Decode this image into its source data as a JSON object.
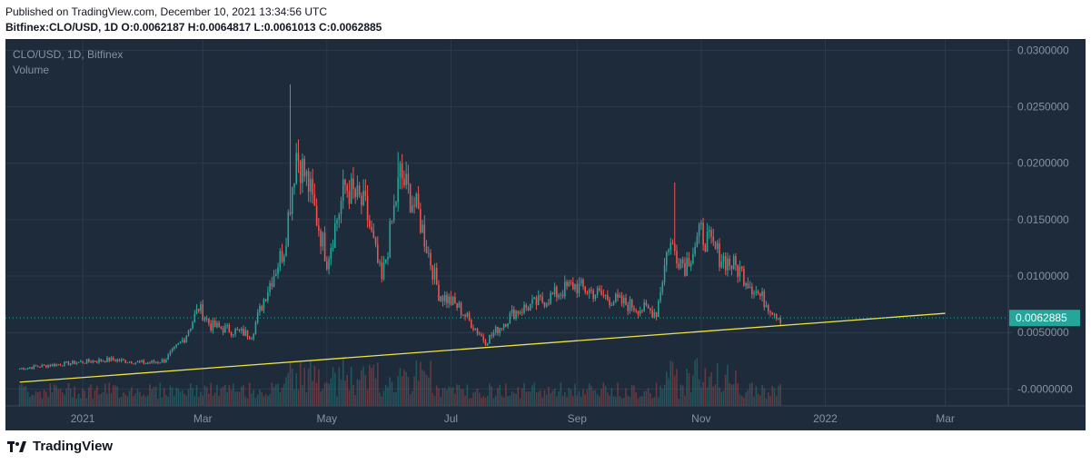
{
  "header": {
    "published": "Published on TradingView.com, December 10, 2021 13:34:56 UTC",
    "symbol": "Bitfinex:CLO/USD, 1D",
    "o_label": "O:",
    "o": "0.0062187",
    "h_label": "H:",
    "h": "0.0064817",
    "l_label": "L:",
    "l": "0.0061013",
    "c_label": "C:",
    "c": "0.0062885"
  },
  "legend": {
    "series": "CLO/USD, 1D, Bitfinex",
    "volume": "Volume"
  },
  "footer": {
    "brand": "TradingView"
  },
  "colors": {
    "background": "#1e2b3b",
    "grid": "#2b3a4c",
    "up": "#26a69a",
    "down": "#ef5350",
    "trendline": "#f0e442",
    "last_price_bg": "#26a69a",
    "axis_text": "#8592a3"
  },
  "chart_data": {
    "type": "candlestick",
    "title": "CLO/USD, 1D, Bitfinex",
    "x_ticks": [
      "2021",
      "Mar",
      "May",
      "Jul",
      "Sep",
      "Nov",
      "2022",
      "Mar"
    ],
    "x_tick_dates": [
      "2021-01-01",
      "2021-03-01",
      "2021-05-01",
      "2021-07-01",
      "2021-09-01",
      "2021-11-01",
      "2022-01-01",
      "2022-03-01"
    ],
    "y_ticks": [
      "0.0300000",
      "0.0250000",
      "0.0200000",
      "0.0150000",
      "0.0100000",
      "0.0050000",
      "-0.0000000"
    ],
    "y_tick_values": [
      0.03,
      0.025,
      0.02,
      0.015,
      0.01,
      0.005,
      0
    ],
    "ylim": [
      -0.0015,
      0.031
    ],
    "last_price": 0.0062885,
    "last_price_label": "0.0062885",
    "series_close": [
      [
        "2020-12-01",
        0.0018
      ],
      [
        "2020-12-15",
        0.0021
      ],
      [
        "2021-01-01",
        0.0024
      ],
      [
        "2021-01-15",
        0.0026
      ],
      [
        "2021-02-01",
        0.0023
      ],
      [
        "2021-02-10",
        0.0025
      ],
      [
        "2021-02-20",
        0.0045
      ],
      [
        "2021-02-27",
        0.0072
      ],
      [
        "2021-03-05",
        0.0056
      ],
      [
        "2021-03-15",
        0.0052
      ],
      [
        "2021-03-25",
        0.0048
      ],
      [
        "2021-04-01",
        0.0085
      ],
      [
        "2021-04-10",
        0.0125
      ],
      [
        "2021-04-16",
        0.021
      ],
      [
        "2021-04-22",
        0.018
      ],
      [
        "2021-05-01",
        0.0115
      ],
      [
        "2021-05-10",
        0.018
      ],
      [
        "2021-05-20",
        0.016
      ],
      [
        "2021-05-28",
        0.0095
      ],
      [
        "2021-06-06",
        0.019
      ],
      [
        "2021-06-15",
        0.0155
      ],
      [
        "2021-06-25",
        0.0085
      ],
      [
        "2021-07-05",
        0.0072
      ],
      [
        "2021-07-18",
        0.0042
      ],
      [
        "2021-08-01",
        0.0068
      ],
      [
        "2021-08-15",
        0.0078
      ],
      [
        "2021-08-30",
        0.0092
      ],
      [
        "2021-09-10",
        0.0085
      ],
      [
        "2021-09-20",
        0.0078
      ],
      [
        "2021-10-01",
        0.0072
      ],
      [
        "2021-10-10",
        0.0068
      ],
      [
        "2021-10-16",
        0.013
      ],
      [
        "2021-10-24",
        0.011
      ],
      [
        "2021-11-01",
        0.0138
      ],
      [
        "2021-11-10",
        0.0118
      ],
      [
        "2021-11-20",
        0.0105
      ],
      [
        "2021-11-30",
        0.0082
      ],
      [
        "2021-12-10",
        0.0062885
      ]
    ],
    "spikes": [
      [
        "2021-04-13",
        0.027
      ],
      [
        "2021-06-05",
        0.021
      ],
      [
        "2021-10-19",
        0.0183
      ],
      [
        "2021-11-01",
        0.015
      ]
    ],
    "trendline": {
      "start": [
        "2020-12-01",
        0.0006
      ],
      "end": [
        "2022-03-01",
        0.0067
      ]
    }
  }
}
